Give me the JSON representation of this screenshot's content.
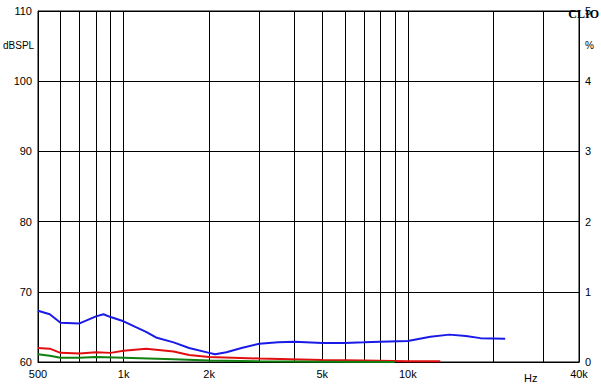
{
  "chart_data": {
    "type": "line",
    "title": "CLIO",
    "xlabel": "Hz",
    "ylabel": "dBSPL",
    "y2label": "%",
    "log": "x",
    "grid": true,
    "xlim": [
      500,
      40000
    ],
    "xticks": [
      500,
      {
        "value": 1000,
        "label": "1k"
      },
      {
        "value": 2000,
        "label": "2k"
      },
      {
        "value": 5000,
        "label": "5k"
      },
      {
        "value": 10000,
        "label": "10k"
      },
      {
        "value": 40000,
        "label": "40k"
      }
    ],
    "ylim": [
      60,
      110
    ],
    "yticks": [
      60,
      70,
      80,
      90,
      100,
      110
    ],
    "y2lim": [
      0,
      5
    ],
    "y2ticks": [
      0,
      1,
      2,
      3,
      4,
      5
    ],
    "series": [
      {
        "color": "#1a1ae6",
        "x": [
          500,
          550,
          600,
          700,
          800,
          850,
          900,
          1000,
          1100,
          1200,
          1300,
          1500,
          1700,
          2000,
          2100,
          2300,
          2600,
          3000,
          3500,
          4000,
          5000,
          6000,
          7000,
          8000,
          10000,
          12000,
          14000,
          16000,
          18000,
          22000
        ],
        "values": [
          67.3,
          66.8,
          65.6,
          65.5,
          66.5,
          66.8,
          66.4,
          65.8,
          65.0,
          64.3,
          63.5,
          62.8,
          62.0,
          61.3,
          61.1,
          61.4,
          62.0,
          62.6,
          62.8,
          62.9,
          62.7,
          62.7,
          62.8,
          62.9,
          63.0,
          63.6,
          63.9,
          63.7,
          63.4,
          63.3
        ]
      },
      {
        "color": "#e01010",
        "x": [
          500,
          550,
          600,
          700,
          800,
          900,
          1000,
          1200,
          1500,
          1700,
          2000,
          3000,
          5000,
          7000,
          10000,
          13000
        ],
        "values": [
          62.0,
          61.9,
          61.3,
          61.2,
          61.4,
          61.3,
          61.6,
          61.9,
          61.5,
          61.0,
          60.7,
          60.5,
          60.3,
          60.2,
          60.1,
          60.1
        ]
      },
      {
        "color": "#108010",
        "x": [
          500,
          550,
          600,
          700,
          800,
          1000,
          1500,
          2000,
          3000,
          5000,
          9000
        ],
        "values": [
          61.1,
          60.9,
          60.6,
          60.6,
          60.7,
          60.6,
          60.4,
          60.2,
          60.1,
          60.05,
          60.0
        ]
      }
    ]
  }
}
